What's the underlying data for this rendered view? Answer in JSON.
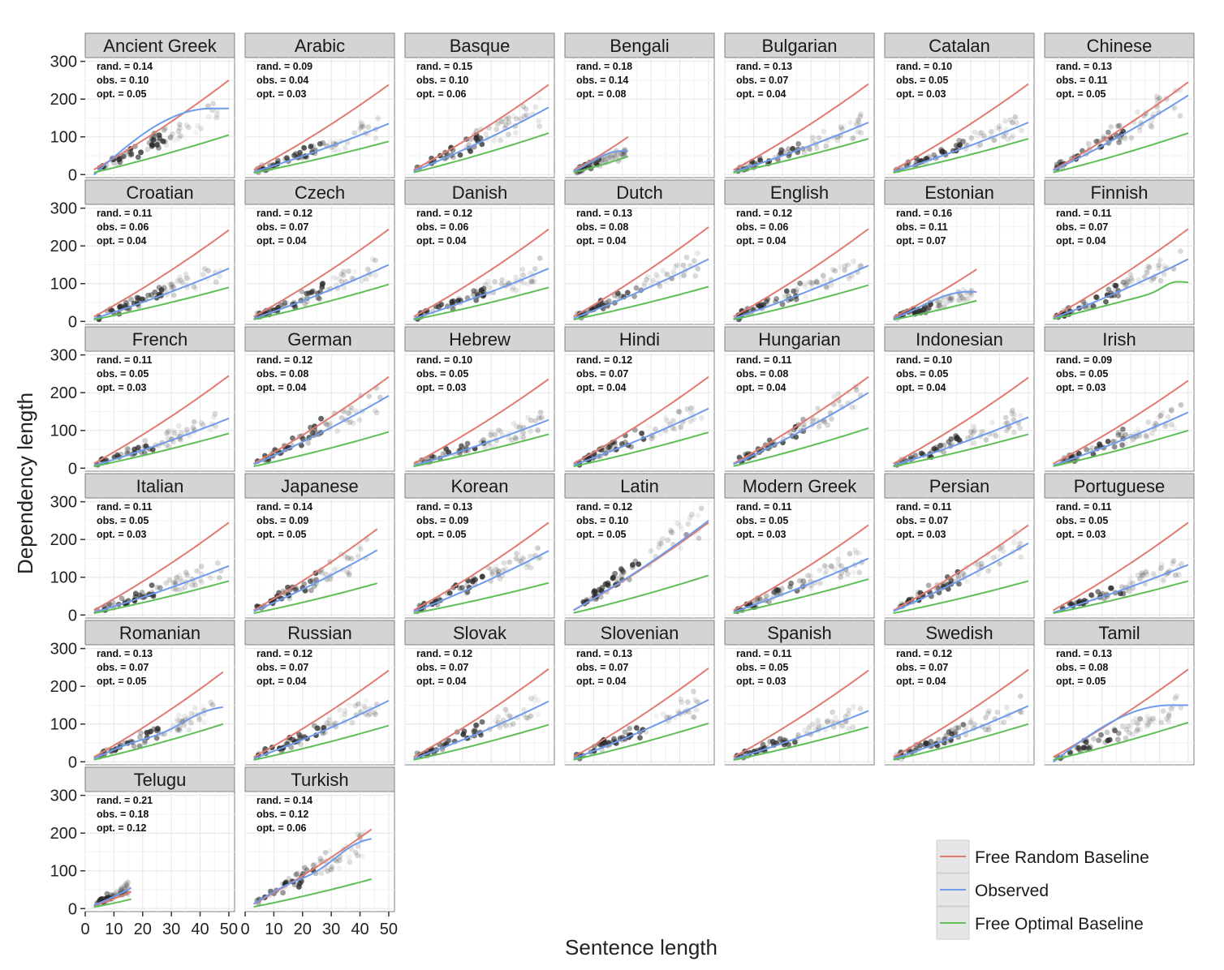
{
  "chart_data": {
    "type": "line",
    "xlabel": "Sentence length",
    "ylabel": "Dependency length",
    "xlim": [
      0,
      52
    ],
    "ylim": [
      -8,
      310
    ],
    "x_ticks": [
      "0",
      "10",
      "20",
      "30",
      "40",
      "50"
    ],
    "x_tick_values": [
      0,
      10,
      20,
      30,
      40,
      50
    ],
    "y_ticks": [
      "0",
      "100",
      "200",
      "300"
    ],
    "y_tick_values": [
      0,
      100,
      200,
      300
    ],
    "grid": true,
    "legend_position": "bottom-right",
    "series": [
      {
        "name": "Free Random Baseline",
        "color": "#e07b72"
      },
      {
        "name": "Observed",
        "color": "#6f9bec"
      },
      {
        "name": "Free Optimal Baseline",
        "color": "#5fbf57"
      }
    ],
    "colors": {
      "panel_bg": "#ffffff",
      "strip_bg": "#d4d4d4",
      "grid": "#e6e6e6",
      "density": "#2b2b2b"
    },
    "panels": [
      {
        "name": "Ancient Greek",
        "rand": "rand. = 0.14",
        "obs": "obs. = 0.10",
        "opt": "opt. = 0.05",
        "max_x": 50,
        "rand_end": 250,
        "obs_end": 175,
        "opt_end": 105,
        "obs_shape": "plateau"
      },
      {
        "name": "Arabic",
        "rand": "rand. = 0.09",
        "obs": "obs. = 0.04",
        "opt": "opt. = 0.03",
        "max_x": 50,
        "rand_end": 238,
        "obs_end": 135,
        "opt_end": 88
      },
      {
        "name": "Basque",
        "rand": "rand. = 0.15",
        "obs": "obs. = 0.10",
        "opt": "opt. = 0.06",
        "max_x": 50,
        "rand_end": 238,
        "obs_end": 178,
        "opt_end": 110
      },
      {
        "name": "Bengali",
        "rand": "rand. = 0.18",
        "obs": "obs. = 0.14",
        "opt": "opt. = 0.08",
        "max_x": 22,
        "rand_end": 100,
        "obs_end": 62,
        "opt_end": 48,
        "obs_shape": "bump"
      },
      {
        "name": "Bulgarian",
        "rand": "rand. = 0.13",
        "obs": "obs. = 0.07",
        "opt": "opt. = 0.04",
        "max_x": 50,
        "rand_end": 240,
        "obs_end": 138,
        "opt_end": 95
      },
      {
        "name": "Catalan",
        "rand": "rand. = 0.10",
        "obs": "obs. = 0.05",
        "opt": "opt. = 0.03",
        "max_x": 50,
        "rand_end": 240,
        "obs_end": 138,
        "opt_end": 95
      },
      {
        "name": "Chinese",
        "rand": "rand. = 0.13",
        "obs": "obs. = 0.11",
        "opt": "opt. = 0.05",
        "max_x": 50,
        "rand_end": 245,
        "obs_end": 210,
        "opt_end": 110
      },
      {
        "name": "Croatian",
        "rand": "rand. = 0.11",
        "obs": "obs. = 0.06",
        "opt": "opt. = 0.04",
        "max_x": 50,
        "rand_end": 242,
        "obs_end": 140,
        "opt_end": 90
      },
      {
        "name": "Czech",
        "rand": "rand. = 0.12",
        "obs": "obs. = 0.07",
        "opt": "opt. = 0.04",
        "max_x": 50,
        "rand_end": 244,
        "obs_end": 150,
        "opt_end": 98
      },
      {
        "name": "Danish",
        "rand": "rand. = 0.12",
        "obs": "obs. = 0.06",
        "opt": "opt. = 0.04",
        "max_x": 50,
        "rand_end": 244,
        "obs_end": 140,
        "opt_end": 90
      },
      {
        "name": "Dutch",
        "rand": "rand. = 0.13",
        "obs": "obs. = 0.08",
        "opt": "opt. = 0.04",
        "max_x": 50,
        "rand_end": 250,
        "obs_end": 165,
        "opt_end": 92
      },
      {
        "name": "English",
        "rand": "rand. = 0.12",
        "obs": "obs. = 0.06",
        "opt": "opt. = 0.04",
        "max_x": 50,
        "rand_end": 245,
        "obs_end": 148,
        "opt_end": 96
      },
      {
        "name": "Estonian",
        "rand": "rand. = 0.16",
        "obs": "obs. = 0.11",
        "opt": "opt. = 0.07",
        "max_x": 32,
        "rand_end": 138,
        "obs_end": 78,
        "opt_end": 55,
        "obs_shape": "bump"
      },
      {
        "name": "Finnish",
        "rand": "rand. = 0.11",
        "obs": "obs. = 0.07",
        "opt": "opt. = 0.04",
        "max_x": 50,
        "rand_end": 245,
        "obs_end": 165,
        "opt_end": 98,
        "opt_shape": "hump"
      },
      {
        "name": "French",
        "rand": "rand. = 0.11",
        "obs": "obs. = 0.05",
        "opt": "opt. = 0.03",
        "max_x": 50,
        "rand_end": 245,
        "obs_end": 132,
        "opt_end": 92
      },
      {
        "name": "German",
        "rand": "rand. = 0.12",
        "obs": "obs. = 0.08",
        "opt": "opt. = 0.04",
        "max_x": 50,
        "rand_end": 242,
        "obs_end": 192,
        "opt_end": 96
      },
      {
        "name": "Hebrew",
        "rand": "rand. = 0.10",
        "obs": "obs. = 0.05",
        "opt": "opt. = 0.03",
        "max_x": 50,
        "rand_end": 236,
        "obs_end": 128,
        "opt_end": 90
      },
      {
        "name": "Hindi",
        "rand": "rand. = 0.12",
        "obs": "obs. = 0.07",
        "opt": "opt. = 0.04",
        "max_x": 50,
        "rand_end": 242,
        "obs_end": 158,
        "opt_end": 95
      },
      {
        "name": "Hungarian",
        "rand": "rand. = 0.11",
        "obs": "obs. = 0.08",
        "opt": "opt. = 0.04",
        "max_x": 50,
        "rand_end": 242,
        "obs_end": 200,
        "opt_end": 106
      },
      {
        "name": "Indonesian",
        "rand": "rand. = 0.10",
        "obs": "obs. = 0.05",
        "opt": "opt. = 0.04",
        "max_x": 50,
        "rand_end": 240,
        "obs_end": 135,
        "opt_end": 90
      },
      {
        "name": "Irish",
        "rand": "rand. = 0.09",
        "obs": "obs. = 0.05",
        "opt": "opt. = 0.03",
        "max_x": 50,
        "rand_end": 232,
        "obs_end": 148,
        "opt_end": 100
      },
      {
        "name": "Italian",
        "rand": "rand. = 0.11",
        "obs": "obs. = 0.05",
        "opt": "opt. = 0.03",
        "max_x": 50,
        "rand_end": 245,
        "obs_end": 130,
        "opt_end": 90
      },
      {
        "name": "Japanese",
        "rand": "rand. = 0.14",
        "obs": "obs. = 0.09",
        "opt": "opt. = 0.05",
        "max_x": 46,
        "rand_end": 228,
        "obs_end": 172,
        "opt_end": 84
      },
      {
        "name": "Korean",
        "rand": "rand. = 0.13",
        "obs": "obs. = 0.09",
        "opt": "opt. = 0.05",
        "max_x": 50,
        "rand_end": 245,
        "obs_end": 170,
        "opt_end": 85
      },
      {
        "name": "Latin",
        "rand": "rand. = 0.12",
        "obs": "obs. = 0.10",
        "opt": "opt. = 0.05",
        "max_x": 50,
        "rand_end": 245,
        "obs_end": 250,
        "opt_end": 105
      },
      {
        "name": "Modern Greek",
        "rand": "rand. = 0.11",
        "obs": "obs. = 0.05",
        "opt": "opt. = 0.03",
        "max_x": 50,
        "rand_end": 238,
        "obs_end": 150,
        "opt_end": 95
      },
      {
        "name": "Persian",
        "rand": "rand. = 0.11",
        "obs": "obs. = 0.07",
        "opt": "opt. = 0.03",
        "max_x": 50,
        "rand_end": 238,
        "obs_end": 190,
        "opt_end": 90
      },
      {
        "name": "Portuguese",
        "rand": "rand. = 0.11",
        "obs": "obs. = 0.05",
        "opt": "opt. = 0.03",
        "max_x": 50,
        "rand_end": 245,
        "obs_end": 133,
        "opt_end": 90
      },
      {
        "name": "Romanian",
        "rand": "rand. = 0.13",
        "obs": "obs. = 0.07",
        "opt": "opt. = 0.05",
        "max_x": 48,
        "rand_end": 238,
        "obs_end": 145,
        "opt_end": 100,
        "obs_shape": "wavy"
      },
      {
        "name": "Russian",
        "rand": "rand. = 0.12",
        "obs": "obs. = 0.07",
        "opt": "opt. = 0.04",
        "max_x": 50,
        "rand_end": 242,
        "obs_end": 162,
        "opt_end": 96
      },
      {
        "name": "Slovak",
        "rand": "rand. = 0.12",
        "obs": "obs. = 0.07",
        "opt": "opt. = 0.04",
        "max_x": 50,
        "rand_end": 246,
        "obs_end": 160,
        "opt_end": 98
      },
      {
        "name": "Slovenian",
        "rand": "rand. = 0.13",
        "obs": "obs. = 0.07",
        "opt": "opt. = 0.04",
        "max_x": 50,
        "rand_end": 248,
        "obs_end": 164,
        "opt_end": 102
      },
      {
        "name": "Spanish",
        "rand": "rand. = 0.11",
        "obs": "obs. = 0.05",
        "opt": "opt. = 0.03",
        "max_x": 50,
        "rand_end": 242,
        "obs_end": 135,
        "opt_end": 92
      },
      {
        "name": "Swedish",
        "rand": "rand. = 0.12",
        "obs": "obs. = 0.07",
        "opt": "opt. = 0.04",
        "max_x": 50,
        "rand_end": 244,
        "obs_end": 148,
        "opt_end": 100
      },
      {
        "name": "Tamil",
        "rand": "rand. = 0.13",
        "obs": "obs. = 0.08",
        "opt": "opt. = 0.05",
        "max_x": 50,
        "rand_end": 245,
        "obs_end": 150,
        "opt_end": 104,
        "obs_shape": "plateau"
      },
      {
        "name": "Telugu",
        "rand": "rand. = 0.21",
        "obs": "obs. = 0.18",
        "opt": "opt. = 0.12",
        "max_x": 16,
        "rand_end": 45,
        "obs_end": 55,
        "opt_end": 25
      },
      {
        "name": "Turkish",
        "rand": "rand. = 0.14",
        "obs": "obs. = 0.12",
        "opt": "opt. = 0.06",
        "max_x": 44,
        "rand_end": 210,
        "obs_end": 185,
        "opt_end": 78,
        "obs_shape": "wavy"
      }
    ]
  }
}
